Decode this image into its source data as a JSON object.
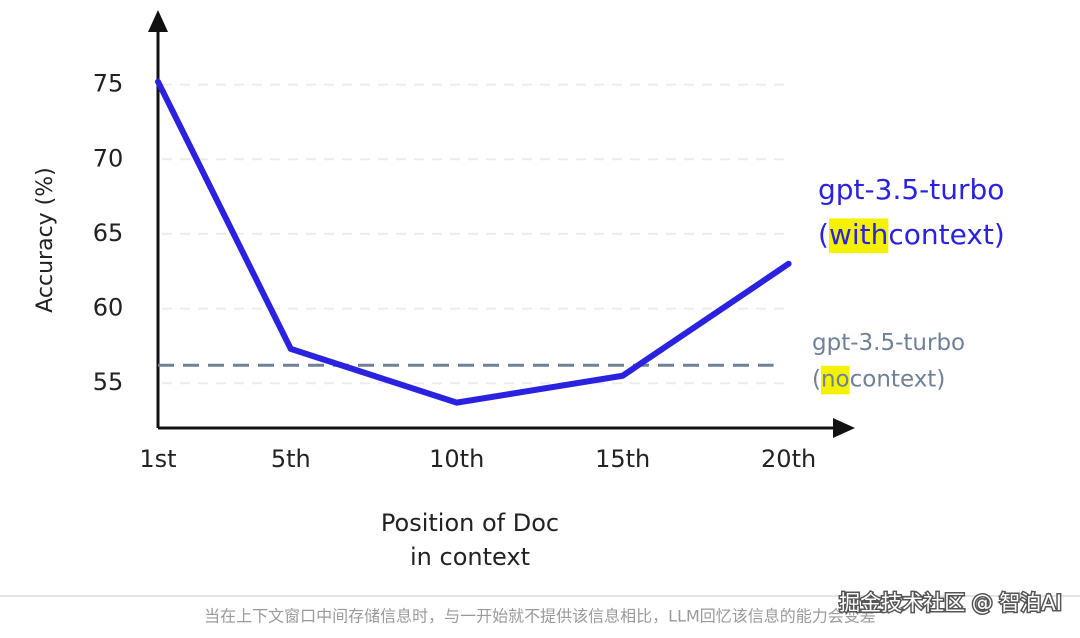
{
  "chart_data": {
    "type": "line",
    "ylabel": "Accuracy (%)",
    "xlabel": [
      "Position of Doc",
      "in context"
    ],
    "x": [
      1,
      5,
      10,
      15,
      20
    ],
    "xticks": [
      {
        "value": 1,
        "label": "1st"
      },
      {
        "value": 5,
        "label": "5th"
      },
      {
        "value": 10,
        "label": "10th"
      },
      {
        "value": 15,
        "label": "15th"
      },
      {
        "value": 20,
        "label": "20th"
      }
    ],
    "xlim": [
      1,
      22
    ],
    "ylim": [
      52,
      80
    ],
    "yticks": [
      55,
      60,
      65,
      70,
      75
    ],
    "grid": true,
    "series": [
      {
        "name": "gpt-3.5-turbo",
        "label": {
          "prefix": "(",
          "highlight": "with",
          "suffix": " context)"
        },
        "color": "#2b22e0",
        "values": [
          75.2,
          57.3,
          53.7,
          55.5,
          63.0
        ]
      }
    ],
    "reference": {
      "name": "gpt-3.5-turbo",
      "label": {
        "prefix": "(",
        "highlight": "no",
        "suffix": " context)"
      },
      "color": "#6f8199",
      "value": 56.2
    }
  },
  "caption": "当在上下文窗口中间存储信息时，与一开始就不提供该信息相比，LLM回忆该信息的能力会变差",
  "watermark": "掘金技术社区 @ 智泊AI"
}
